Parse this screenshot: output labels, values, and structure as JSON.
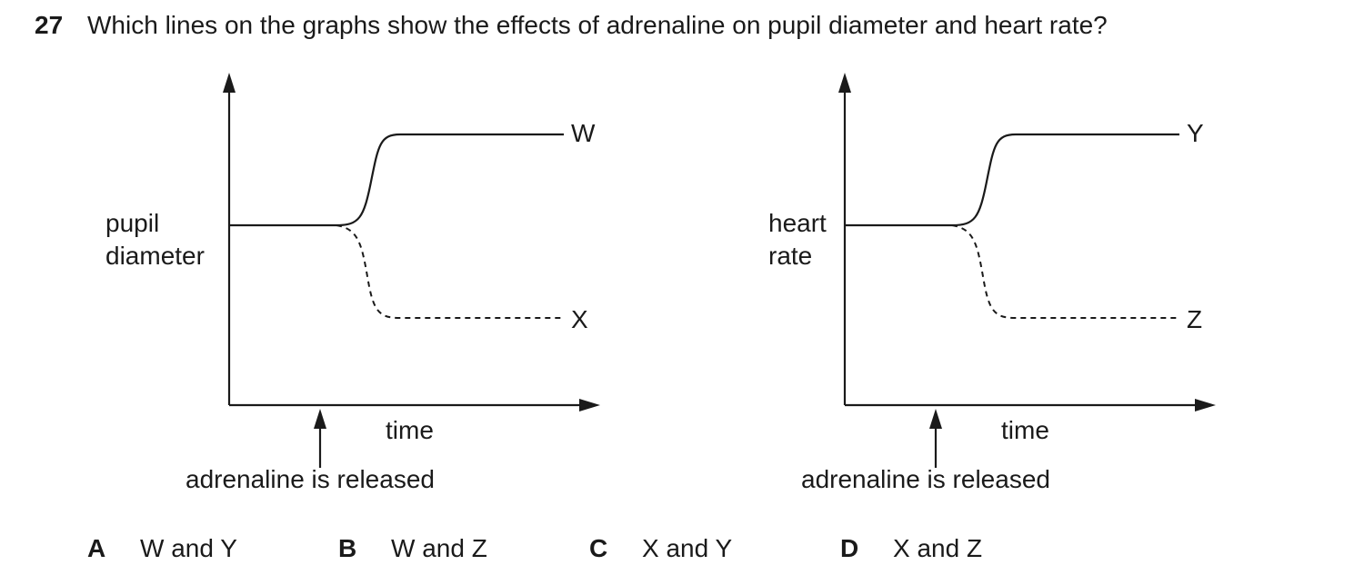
{
  "question": {
    "number": "27",
    "text": "Which lines on the graphs show the effects of adrenaline on pupil diameter and heart rate?"
  },
  "graphs": [
    {
      "y_label_lines": [
        "pupil",
        "diameter"
      ],
      "x_label": "time",
      "arrow_label": "adrenaline is released",
      "increase_label": "W",
      "decrease_label": "X"
    },
    {
      "y_label_lines": [
        "heart",
        "rate"
      ],
      "x_label": "time",
      "arrow_label": "adrenaline is released",
      "increase_label": "Y",
      "decrease_label": "Z"
    }
  ],
  "options": [
    {
      "letter": "A",
      "text": "W and Y"
    },
    {
      "letter": "B",
      "text": "W and Z"
    },
    {
      "letter": "C",
      "text": "X and Y"
    },
    {
      "letter": "D",
      "text": "X and Z"
    }
  ],
  "colors": {
    "ink": "#1a1a1a"
  }
}
